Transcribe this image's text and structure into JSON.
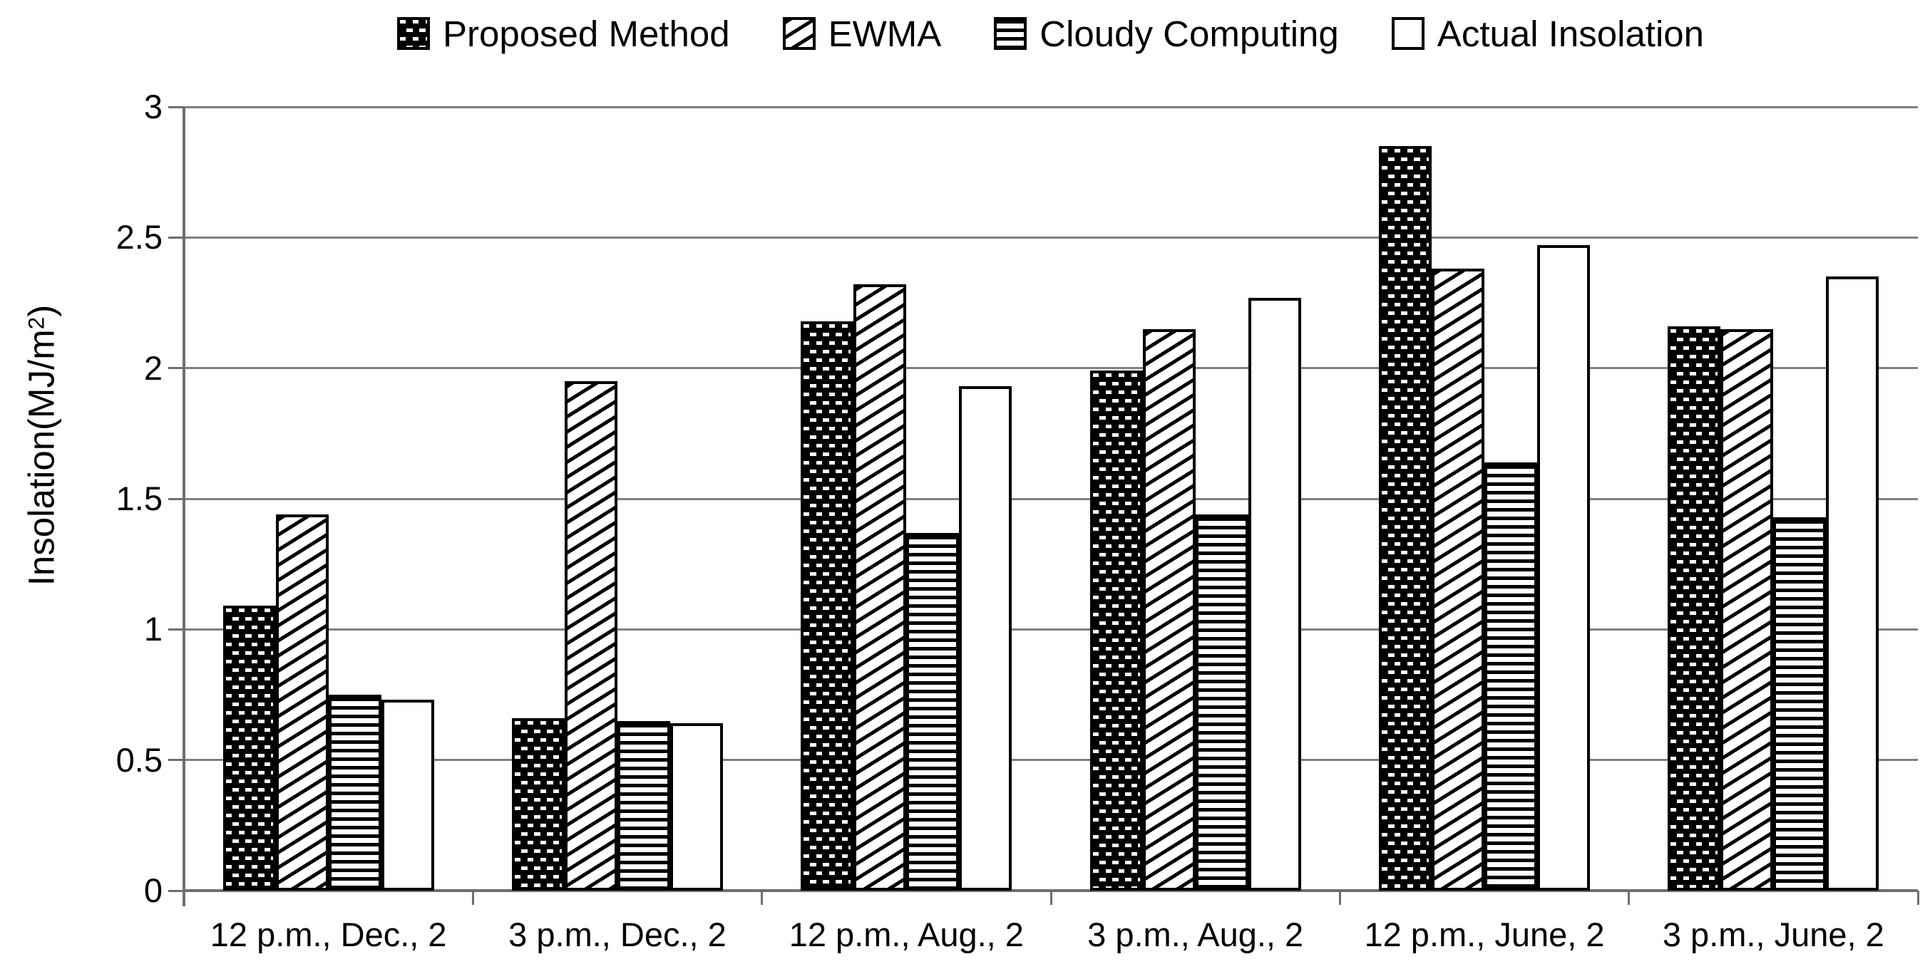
{
  "theme": {
    "background": "#ffffff",
    "text_color": "#000000",
    "grid_color": "#808080",
    "axis_color": "#6e6e6e",
    "bar_border_color": "#000000"
  },
  "yaxis_title": {
    "main": "Insolation(MJ/m",
    "sup": "2",
    "end": ")"
  },
  "chart_data": {
    "type": "bar",
    "title": "",
    "categories": [
      "12 p.m., Dec., 2",
      "3 p.m., Dec., 2",
      "12 p.m., Aug., 2",
      "3 p.m., Aug., 2",
      "12 p.m., June, 2",
      "3 p.m., June, 2"
    ],
    "series": [
      {
        "name": "Proposed Method",
        "pattern": "dotted-black",
        "values": [
          1.09,
          0.66,
          2.18,
          1.99,
          2.85,
          2.16
        ]
      },
      {
        "name": "EWMA",
        "pattern": "diagonal-hatch",
        "values": [
          1.44,
          1.95,
          2.32,
          2.15,
          2.38,
          2.15
        ]
      },
      {
        "name": "Cloudy Computing",
        "pattern": "horizontal-lines",
        "values": [
          0.75,
          0.65,
          1.37,
          1.44,
          1.64,
          1.43
        ]
      },
      {
        "name": "Actual Insolation",
        "pattern": "white",
        "values": [
          0.73,
          0.64,
          1.93,
          2.27,
          2.47,
          2.35
        ]
      }
    ],
    "xlabel": "",
    "ylabel": "Insolation(MJ/m²)",
    "ylim": [
      0,
      3
    ],
    "yticks": [
      0,
      0.5,
      1,
      1.5,
      2,
      2.5,
      3
    ],
    "grid": true,
    "legend_position": "top"
  }
}
